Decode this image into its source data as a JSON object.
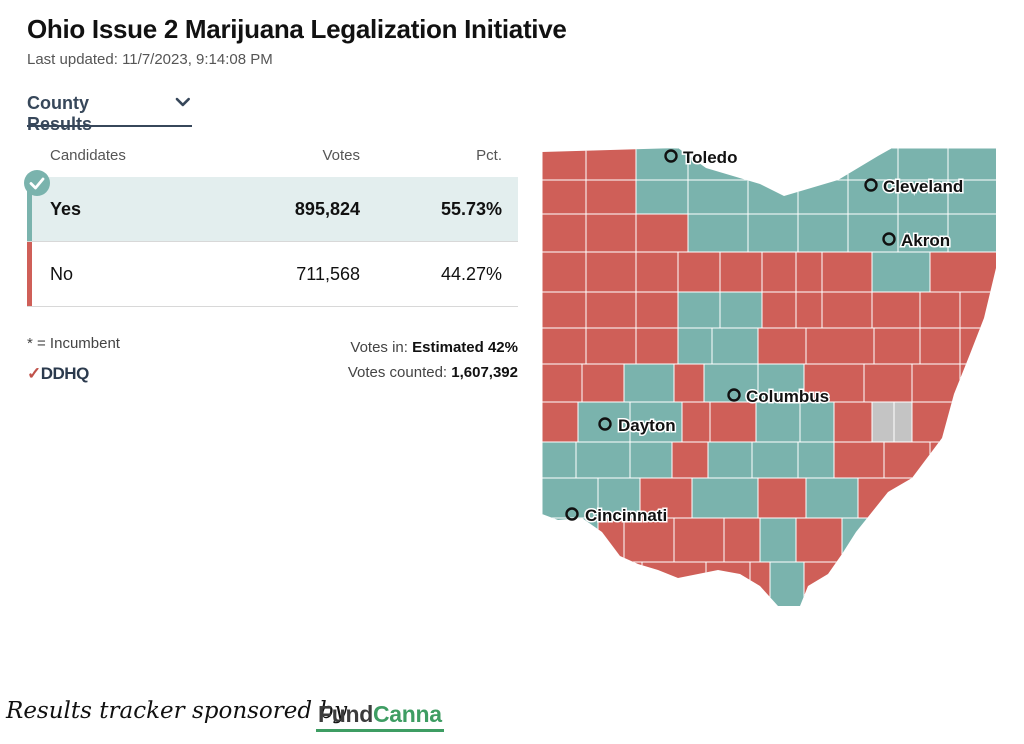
{
  "header": {
    "title": "Ohio Issue 2 Marijuana Legalization Initiative",
    "last_updated": "Last updated: 11/7/2023, 9:14:08 PM"
  },
  "dropdown": {
    "label": "County Results",
    "icon": "chevron-down-icon"
  },
  "table": {
    "headers": {
      "candidates": "Candidates",
      "votes": "Votes",
      "pct": "Pct."
    },
    "rows": [
      {
        "name": "Yes",
        "votes": "895,824",
        "pct": "55.73%",
        "winner": true,
        "color": "#7ab3ad"
      },
      {
        "name": "No",
        "votes": "711,568",
        "pct": "44.27%",
        "winner": false,
        "color": "#cf5f58"
      }
    ]
  },
  "footer": {
    "incumbent_note": "* = Incumbent",
    "logo_text": "DDHQ",
    "votes_in_label": "Votes in: ",
    "votes_in_value": "Estimated 42%",
    "votes_counted_label": "Votes counted: ",
    "votes_counted_value": "1,607,392"
  },
  "map": {
    "colors": {
      "yes": "#7ab3ad",
      "no": "#cf5f58",
      "no_data": "#c4c4c4",
      "border": "#ffffff"
    },
    "cities": [
      {
        "name": "Toledo"
      },
      {
        "name": "Cleveland"
      },
      {
        "name": "Akron"
      },
      {
        "name": "Columbus"
      },
      {
        "name": "Dayton"
      },
      {
        "name": "Cincinnati"
      }
    ]
  },
  "sponsor": {
    "text": "Results tracker sponsored by",
    "logo_prefix": "Fund",
    "logo_suffix": "Canna"
  }
}
